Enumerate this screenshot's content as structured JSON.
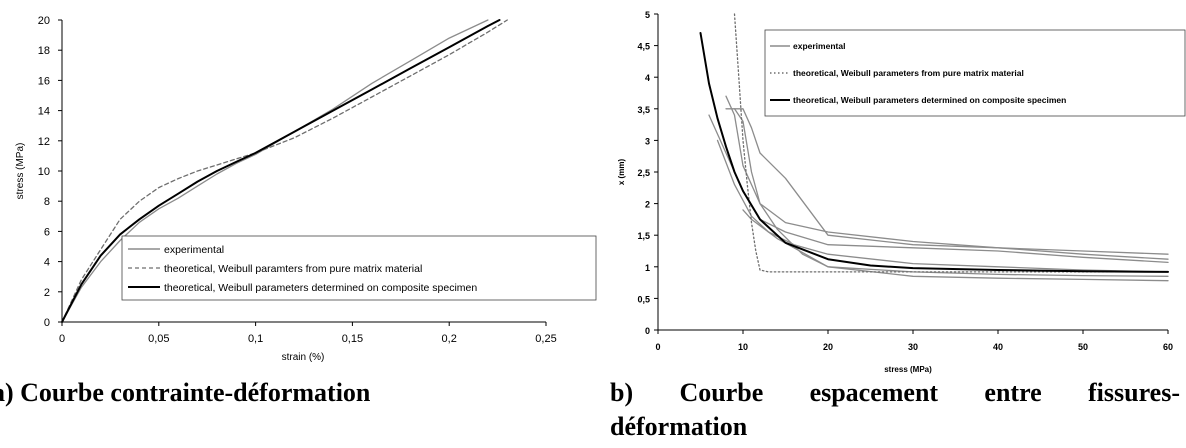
{
  "colors": {
    "experimental": "#8c8c8c",
    "theoretical_matrix": "#6e6e6e",
    "theoretical_composite": "#000000"
  },
  "captions": {
    "a": "a) Courbe contrainte-déformation",
    "b_words": [
      "b)",
      "Courbe",
      "espacement",
      "entre",
      "fissures-"
    ],
    "b_line2": "déformation"
  },
  "chart_data": [
    {
      "type": "line",
      "title": "",
      "xlabel": "strain (%)",
      "ylabel": "stress (MPa)",
      "xlim": [
        0,
        0.25
      ],
      "ylim": [
        0,
        20
      ],
      "x_ticks": [
        "0",
        "0,05",
        "0,1",
        "0,15",
        "0,2",
        "0,25"
      ],
      "y_ticks": [
        "0",
        "2",
        "4",
        "6",
        "8",
        "10",
        "12",
        "14",
        "16",
        "18",
        "20"
      ],
      "grid": false,
      "legend_position": "bottom-right",
      "series": [
        {
          "name": "experimental",
          "style": "solid-grey",
          "x": [
            0,
            0.01,
            0.02,
            0.03,
            0.04,
            0.05,
            0.06,
            0.07,
            0.08,
            0.09,
            0.1,
            0.12,
            0.14,
            0.16,
            0.18,
            0.2,
            0.22
          ],
          "y": [
            0,
            2.3,
            4.0,
            5.4,
            6.6,
            7.5,
            8.2,
            9.0,
            9.8,
            10.5,
            11.1,
            12.6,
            14.1,
            15.8,
            17.3,
            18.8,
            20.0
          ]
        },
        {
          "name": "theoretical, Weibull paramters from pure matrix material",
          "style": "dashed",
          "x": [
            0,
            0.01,
            0.02,
            0.03,
            0.04,
            0.05,
            0.06,
            0.07,
            0.08,
            0.09,
            0.1,
            0.12,
            0.14,
            0.16,
            0.18,
            0.2,
            0.22,
            0.23
          ],
          "y": [
            0,
            2.8,
            4.8,
            6.8,
            8.0,
            8.9,
            9.5,
            10.0,
            10.4,
            10.8,
            11.2,
            12.2,
            13.5,
            14.9,
            16.3,
            17.7,
            19.2,
            20.0
          ]
        },
        {
          "name": "theoretical, Weibull parameters determined on composite specimen",
          "style": "solid-black",
          "x": [
            0,
            0.01,
            0.02,
            0.03,
            0.04,
            0.05,
            0.06,
            0.07,
            0.08,
            0.09,
            0.1,
            0.12,
            0.14,
            0.16,
            0.18,
            0.2,
            0.22,
            0.226
          ],
          "y": [
            0,
            2.5,
            4.4,
            5.8,
            6.8,
            7.7,
            8.5,
            9.3,
            10.0,
            10.6,
            11.2,
            12.6,
            14.0,
            15.4,
            16.8,
            18.2,
            19.6,
            20.0
          ]
        }
      ]
    },
    {
      "type": "line",
      "title": "",
      "xlabel": "stress (MPa)",
      "ylabel": "x (mm)",
      "xlim": [
        0,
        60
      ],
      "ylim": [
        0,
        5
      ],
      "x_ticks": [
        "0",
        "10",
        "20",
        "30",
        "40",
        "50",
        "60"
      ],
      "y_ticks": [
        "0",
        "0,5",
        "1",
        "1,5",
        "2",
        "2,5",
        "3",
        "3,5",
        "4",
        "4,5",
        "5"
      ],
      "grid": false,
      "legend_position": "top-right",
      "legend": [
        "experimental",
        "theoretical, Weibull parameters from pure matrix material",
        "theoretical, Weibull parameters determined on composite specimen"
      ],
      "series": [
        {
          "role": "experimental",
          "style": "solid-grey",
          "x": [
            8,
            10,
            11,
            12,
            15,
            20,
            30,
            40,
            50,
            60
          ],
          "y": [
            3.5,
            3.5,
            3.2,
            2.8,
            2.4,
            1.5,
            1.35,
            1.3,
            1.25,
            1.2
          ]
        },
        {
          "role": "experimental",
          "style": "solid-grey",
          "x": [
            8,
            9,
            10,
            12,
            15,
            20,
            30,
            40,
            50,
            60
          ],
          "y": [
            3.7,
            3.4,
            2.6,
            2.0,
            1.7,
            1.55,
            1.4,
            1.3,
            1.2,
            1.12
          ]
        },
        {
          "role": "experimental",
          "style": "solid-grey",
          "x": [
            6,
            8,
            10,
            12,
            15,
            20,
            30,
            40,
            50,
            60
          ],
          "y": [
            3.4,
            2.8,
            2.2,
            1.75,
            1.55,
            1.35,
            1.3,
            1.25,
            1.15,
            1.07
          ]
        },
        {
          "role": "experimental",
          "style": "solid-grey",
          "x": [
            7,
            9,
            11,
            13,
            16,
            20,
            30,
            40,
            50,
            60
          ],
          "y": [
            3.0,
            2.3,
            1.8,
            1.55,
            1.35,
            1.2,
            1.05,
            1.0,
            0.95,
            0.92
          ]
        },
        {
          "role": "experimental",
          "style": "solid-grey",
          "x": [
            9,
            10,
            11,
            12,
            14,
            17,
            20,
            30,
            40,
            50,
            60
          ],
          "y": [
            3.5,
            3.3,
            2.5,
            2.0,
            1.6,
            1.2,
            1.0,
            0.92,
            0.88,
            0.86,
            0.85
          ]
        },
        {
          "role": "experimental",
          "style": "solid-grey",
          "x": [
            10,
            11,
            12,
            14,
            16,
            20,
            30,
            40,
            50,
            60
          ],
          "y": [
            1.9,
            1.75,
            1.65,
            1.45,
            1.3,
            1.0,
            0.85,
            0.82,
            0.8,
            0.78
          ]
        },
        {
          "role": "theoretical_matrix",
          "style": "dotted",
          "x": [
            9,
            9.5,
            10,
            10.5,
            11,
            11.5,
            12,
            13,
            15,
            20,
            30,
            40,
            50,
            60
          ],
          "y": [
            5.0,
            4.0,
            3.0,
            2.3,
            1.7,
            1.25,
            0.95,
            0.92,
            0.92,
            0.92,
            0.92,
            0.92,
            0.92,
            0.92
          ]
        },
        {
          "role": "theoretical_composite",
          "style": "solid-black",
          "x": [
            5,
            6,
            7,
            8,
            9,
            10,
            12,
            15,
            20,
            25,
            30,
            40,
            50,
            60
          ],
          "y": [
            4.7,
            3.9,
            3.35,
            2.9,
            2.5,
            2.2,
            1.75,
            1.38,
            1.12,
            1.02,
            0.98,
            0.95,
            0.93,
            0.92
          ]
        }
      ]
    }
  ]
}
